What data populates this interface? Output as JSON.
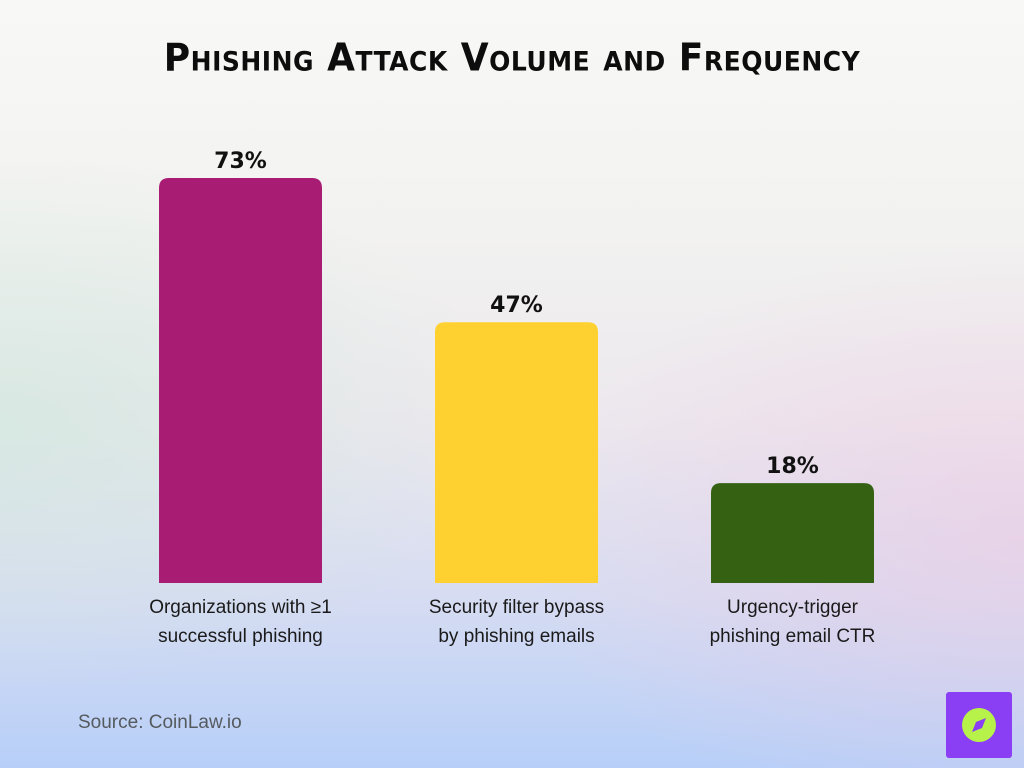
{
  "title": "Phishing Attack Volume and Frequency",
  "source": "Source: CoinLaw.io",
  "logo": {
    "icon": "compass-icon",
    "bg": "#8a3ff5",
    "circle": "#b6f24a",
    "needle": "#8a3ff5"
  },
  "chart_data": {
    "type": "bar",
    "title": "Phishing Attack Volume and Frequency",
    "categories": [
      [
        "Organizations with ≥1",
        "successful phishing"
      ],
      [
        "Security filter bypass",
        "by phishing emails"
      ],
      [
        "Urgency-trigger",
        "phishing email CTR"
      ]
    ],
    "values": [
      73,
      47,
      18
    ],
    "value_labels": [
      "73%",
      "47%",
      "18%"
    ],
    "colors": [
      "#a81c74",
      "#ffd130",
      "#346212"
    ],
    "unit": "%",
    "ylim": [
      0,
      73
    ],
    "grid": false,
    "legend": "none",
    "xlabel": "",
    "ylabel": ""
  }
}
